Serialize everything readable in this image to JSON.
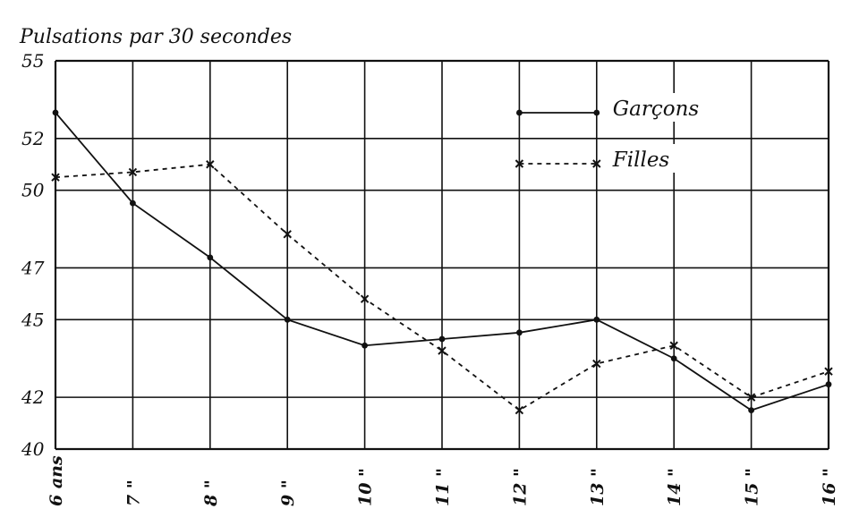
{
  "chart_data": {
    "type": "line",
    "ylabel": "Pulsations par 30 secondes",
    "xlabel": "",
    "categories": [
      "6 ans",
      "7 \"",
      "8 \"",
      "9 \"",
      "10 \"",
      "11 \"",
      "12 \"",
      "13 \"",
      "14 \"",
      "15 \"",
      "16 \""
    ],
    "ylim": [
      40,
      55
    ],
    "yticks": [
      40,
      42,
      45,
      47,
      50,
      52,
      55
    ],
    "grid": true,
    "legend_position": "top-right",
    "series": [
      {
        "name": "Garçons",
        "style": "solid",
        "marker": "dot",
        "values": [
          53.0,
          49.5,
          47.4,
          45.0,
          44.0,
          44.25,
          44.5,
          45.0,
          43.5,
          41.5,
          42.5
        ]
      },
      {
        "name": "Filles",
        "style": "dashed",
        "marker": "cross",
        "values": [
          50.5,
          50.7,
          51.0,
          48.3,
          45.8,
          43.8,
          41.5,
          43.3,
          44.0,
          42.0,
          43.0
        ]
      }
    ]
  },
  "colors": {
    "ink": "#111111",
    "background": "#ffffff"
  }
}
